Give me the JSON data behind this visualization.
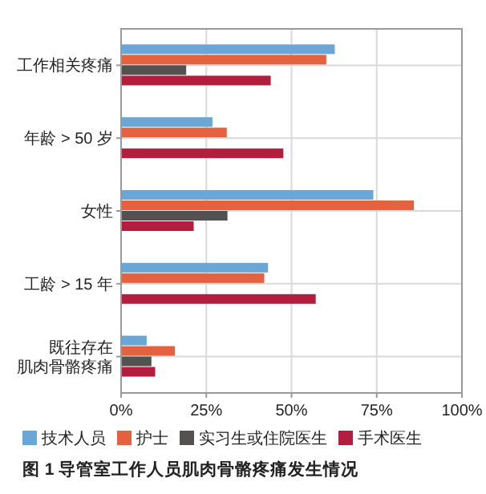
{
  "chart_data": {
    "type": "bar",
    "orientation": "horizontal",
    "title": "图 1  导管室工作人员肌肉骨骼疼痛发生情况",
    "categories": [
      "工作相关疼痛",
      "年龄 > 50 岁",
      "女性",
      "工龄 > 15 年",
      "既往存在肌肉骨骼疼痛"
    ],
    "series": [
      {
        "name": "技术人员",
        "color": "#6aa7d6",
        "values": [
          62.7,
          26.8,
          74.0,
          43.1,
          7.5
        ]
      },
      {
        "name": "护士",
        "color": "#e46240",
        "values": [
          60.2,
          31.0,
          85.9,
          42.0,
          15.8
        ]
      },
      {
        "name": "实习生或住院医生",
        "color": "#545250",
        "values": [
          19.1,
          null,
          31.2,
          null,
          8.9
        ]
      },
      {
        "name": "手术医生",
        "color": "#b31e3f",
        "values": [
          43.9,
          47.6,
          21.3,
          57.1,
          10.0
        ]
      }
    ],
    "xlim": [
      0,
      100
    ],
    "xticks": [
      {
        "value": 0,
        "label": "0%"
      },
      {
        "value": 25,
        "label": "25%"
      },
      {
        "value": 50,
        "label": "50%"
      },
      {
        "value": 75,
        "label": "75%"
      },
      {
        "value": 100,
        "label": "100%"
      }
    ],
    "grid": true,
    "legend": "bottom"
  }
}
